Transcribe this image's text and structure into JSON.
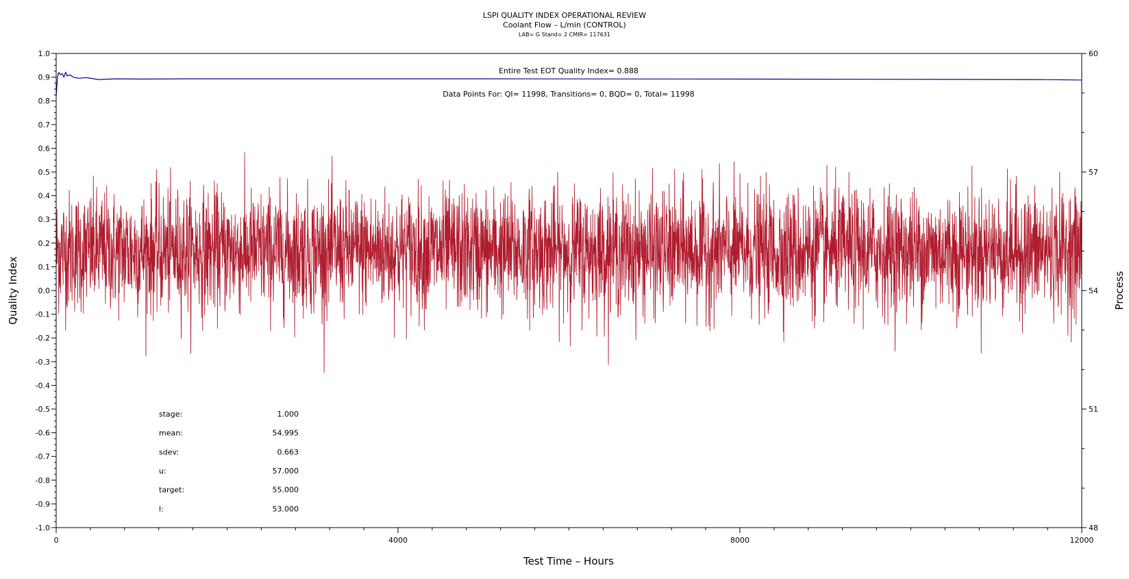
{
  "chart_data": {
    "type": "line",
    "title": "LSPI QUALITY INDEX OPERATIONAL REVIEW",
    "subtitle": "Coolant Flow – L/min (CONTROL)",
    "subtitle2": "LAB= G Stand= 2 CMIR= 117631",
    "xlabel": "Test Time – Hours",
    "ylabel": "Quality Index",
    "y2label": "Process",
    "xlim": [
      0,
      12000
    ],
    "ylim": [
      -1.0,
      1.0
    ],
    "y2lim": [
      48,
      60
    ],
    "x_ticks": [
      "0",
      "4000",
      "8000",
      "12000"
    ],
    "y_ticks": [
      "1.0",
      "0.9",
      "0.8",
      "0.7",
      "0.6",
      "0.5",
      "0.4",
      "0.3",
      "0.2",
      "0.1",
      "0.0",
      "-0.1",
      "-0.2",
      "-0.3",
      "-0.4",
      "-0.5",
      "-0.6",
      "-0.7",
      "-0.8",
      "-0.9",
      "-1.0"
    ],
    "y2_ticks": [
      "60",
      "57",
      "54",
      "51",
      "48"
    ],
    "annotations": {
      "eot": "Entire Test EOT Quality Index=   0.888",
      "points": "Data Points For: QI= 11998, Transitions=     0, BQD=     0, Total= 11998"
    },
    "stats": [
      {
        "label": "stage:",
        "value": "1.000"
      },
      {
        "label": "mean:",
        "value": "54.995"
      },
      {
        "label": "sdev:",
        "value": "0.663"
      },
      {
        "label": "u:",
        "value": "57.000"
      },
      {
        "label": "target:",
        "value": "55.000"
      },
      {
        "label": "l:",
        "value": "53.000"
      }
    ],
    "series": [
      {
        "color": "#00008b",
        "axis": "left",
        "style": "line",
        "x": [
          0,
          15,
          30,
          50,
          70,
          90,
          110,
          130,
          160,
          200,
          260,
          350,
          500,
          700,
          1000,
          1500,
          2000,
          3000,
          5000,
          8000,
          11500,
          12000
        ],
        "y": [
          0.82,
          0.9,
          0.92,
          0.91,
          0.915,
          0.9,
          0.92,
          0.905,
          0.91,
          0.9,
          0.895,
          0.898,
          0.89,
          0.893,
          0.892,
          0.893,
          0.893,
          0.893,
          0.893,
          0.892,
          0.89,
          0.888
        ]
      },
      {
        "color": "#b01c2e",
        "axis": "right",
        "style": "noise-band",
        "mean": 54.995,
        "sdev": 0.663,
        "n": 11998
      }
    ]
  }
}
